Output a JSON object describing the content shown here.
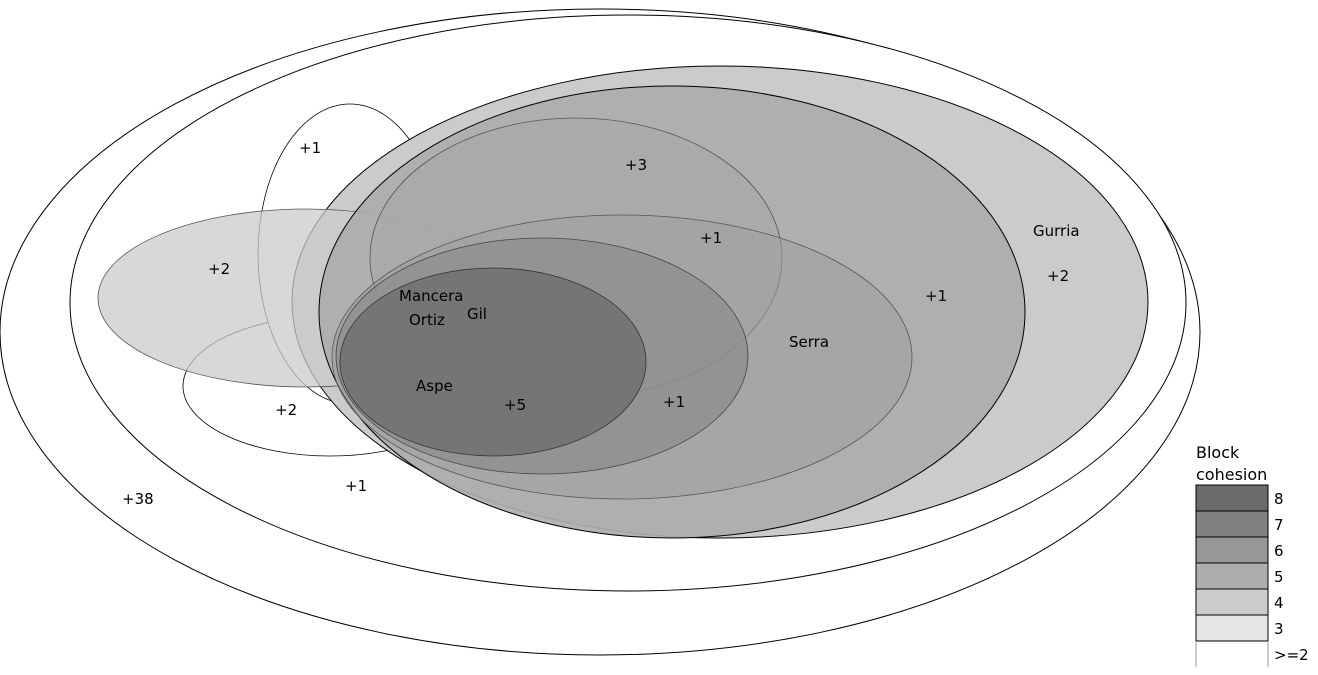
{
  "diagram": {
    "labels": {
      "gurria": "Gurria",
      "serra": "Serra",
      "mancera": "Mancera",
      "ortiz": "Ortiz",
      "gil": "Gil",
      "aspe": "Aspe",
      "count_38": "+38",
      "count_1_bottom": "+1",
      "count_2_lower_left": "+2",
      "count_2_left": "+2",
      "count_1_top_left": "+1",
      "count_3": "+3",
      "count_1_mid": "+1",
      "count_1_right": "+1",
      "count_2_right": "+2",
      "count_1_center": "+1",
      "count_5": "+5"
    }
  },
  "legend": {
    "title_line1": "Block",
    "title_line2": "cohesion",
    "levels": [
      {
        "label": "8",
        "color": "#6b6b6b"
      },
      {
        "label": "7",
        "color": "#7f7f7f"
      },
      {
        "label": "6",
        "color": "#979797"
      },
      {
        "label": "5",
        "color": "#adadad"
      },
      {
        "label": "4",
        "color": "#cbcbcb"
      },
      {
        "label": "3",
        "color": "#e6e6e6"
      },
      {
        "label": ">=2",
        "color": "#ffffff"
      }
    ]
  }
}
